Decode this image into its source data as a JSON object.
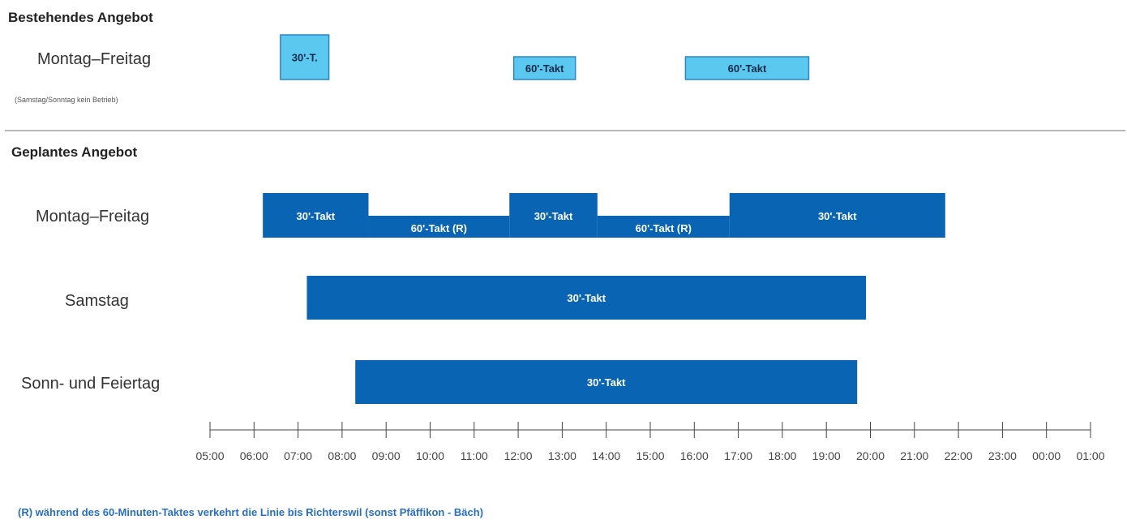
{
  "sections": {
    "existing_title": "Bestehendes Angebot",
    "planned_title": "Geplantes Angebot"
  },
  "rows": {
    "existing_weekday": "Montag–Freitag",
    "existing_note": "(Samstag/Sonntag kein Betrieb)",
    "planned_weekday": "Montag–Freitag",
    "planned_saturday": "Samstag",
    "planned_sunday": "Sonn- und Feiertag"
  },
  "footnote": "(R) während des 60-Minuten-Taktes verkehrt die Linie bis Richterswil (sonst Pfäffikon - Bäch)",
  "colors": {
    "existing_bar": "#5bc8f0",
    "existing_border": "#2a86c4",
    "planned_bar": "#0a64b4",
    "axis": "#444444"
  },
  "chart_data": {
    "type": "timeline",
    "x_ticks": [
      "05:00",
      "06:00",
      "07:00",
      "08:00",
      "09:00",
      "10:00",
      "11:00",
      "12:00",
      "13:00",
      "14:00",
      "15:00",
      "16:00",
      "17:00",
      "18:00",
      "19:00",
      "20:00",
      "21:00",
      "22:00",
      "23:00",
      "00:00",
      "01:00"
    ],
    "x_range_hours": [
      5,
      25
    ],
    "rows": [
      {
        "row": "existing_weekday",
        "bars": [
          {
            "start": 6.6,
            "end": 7.7,
            "label": "30'-T.",
            "level": "tall"
          },
          {
            "start": 11.9,
            "end": 13.3,
            "label": "60'-Takt",
            "level": "short"
          },
          {
            "start": 15.8,
            "end": 18.6,
            "label": "60'-Takt",
            "level": "short"
          }
        ]
      },
      {
        "row": "planned_weekday",
        "bars": [
          {
            "start": 6.2,
            "end": 8.6,
            "label": "30'-Takt",
            "level": "high"
          },
          {
            "start": 8.6,
            "end": 11.8,
            "label": "60'-Takt (R)",
            "level": "low"
          },
          {
            "start": 11.8,
            "end": 13.8,
            "label": "30'-Takt",
            "level": "high"
          },
          {
            "start": 13.8,
            "end": 16.8,
            "label": "60'-Takt (R)",
            "level": "low"
          },
          {
            "start": 16.8,
            "end": 21.7,
            "label": "30'-Takt",
            "level": "high"
          }
        ]
      },
      {
        "row": "planned_saturday",
        "bars": [
          {
            "start": 7.2,
            "end": 19.9,
            "label": "30'-Takt",
            "level": "full"
          }
        ]
      },
      {
        "row": "planned_sunday",
        "bars": [
          {
            "start": 8.3,
            "end": 19.7,
            "label": "30'-Takt",
            "level": "full"
          }
        ]
      }
    ]
  }
}
